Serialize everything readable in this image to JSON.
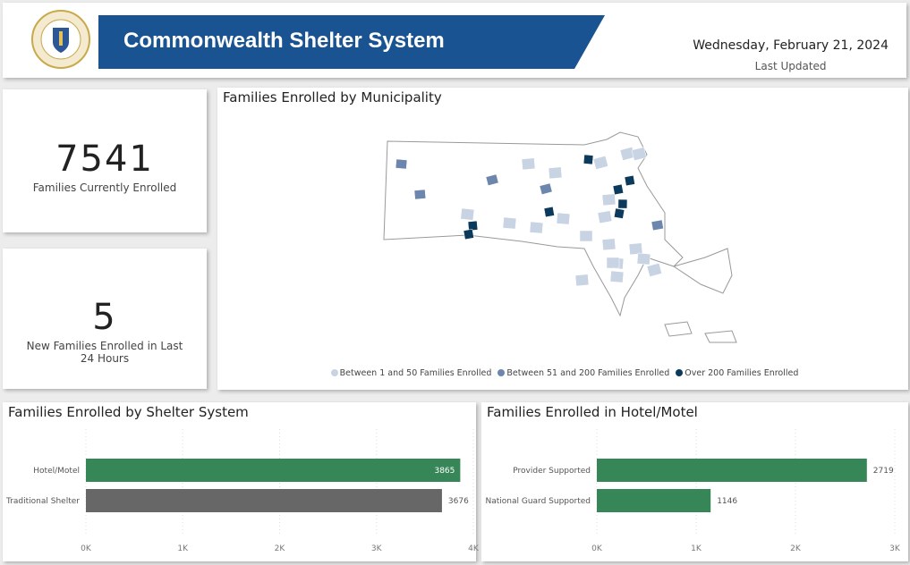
{
  "header": {
    "title": "Commonwealth Shelter System",
    "date": "Wednesday, February 21, 2024",
    "date_label": "Last Updated",
    "seal_text": "Seal of Massachusetts"
  },
  "kpis": [
    {
      "value": "7541",
      "label": "Families Currently Enrolled"
    },
    {
      "value": "5",
      "label": "New Families Enrolled in Last 24 Hours"
    }
  ],
  "map": {
    "title": "Families Enrolled by Municipality",
    "legend": [
      {
        "label": "Between 1 and 50 Families Enrolled",
        "color": "#c8d3e3"
      },
      {
        "label": "Between 51 and 200 Families Enrolled",
        "color": "#6c86ad"
      },
      {
        "label": "Over 200 Families Enrolled",
        "color": "#0c3a5c"
      }
    ]
  },
  "chart_data": [
    {
      "type": "bar",
      "orientation": "horizontal",
      "title": "Families Enrolled by Shelter System",
      "categories": [
        "Hotel/Motel",
        "Traditional Shelter"
      ],
      "values": [
        3865,
        3676
      ],
      "colors": [
        "#378657",
        "#676767"
      ],
      "xlim": [
        0,
        4000
      ],
      "ticks": [
        "0K",
        "1K",
        "2K",
        "3K",
        "4K"
      ],
      "grid": true
    },
    {
      "type": "bar",
      "orientation": "horizontal",
      "title": "Families Enrolled in Hotel/Motel",
      "categories": [
        "Provider Supported",
        "National Guard Supported"
      ],
      "values": [
        2719,
        1146
      ],
      "colors": [
        "#378657",
        "#378657"
      ],
      "xlim": [
        0,
        3000
      ],
      "ticks": [
        "0K",
        "1K",
        "2K",
        "3K"
      ],
      "grid": true
    }
  ]
}
